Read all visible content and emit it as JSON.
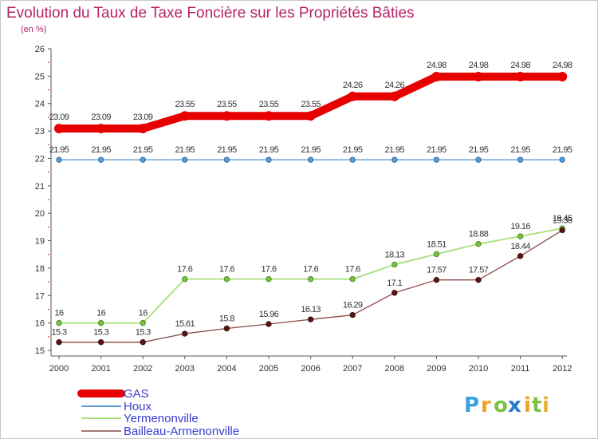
{
  "chart_data": {
    "type": "line",
    "title": "Evolution du Taux de Taxe Foncière sur les Propriétés Bâties",
    "subtitle": "(en %)",
    "xlabel": "",
    "ylabel": "",
    "ylim": [
      15,
      26
    ],
    "yticks": [
      "15",
      "16",
      "17",
      "18",
      "19",
      "20",
      "21",
      "22",
      "23",
      "24",
      "25",
      "26"
    ],
    "categories": [
      "2000",
      "2001",
      "2002",
      "2003",
      "2004",
      "2005",
      "2006",
      "2007",
      "2008",
      "2009",
      "2010",
      "2011",
      "2012"
    ],
    "grid": false,
    "legend_position": "bottom-left",
    "series": [
      {
        "name": "GAS",
        "color": "#e60000",
        "values": [
          23.09,
          23.09,
          23.09,
          23.55,
          23.55,
          23.55,
          23.55,
          24.26,
          24.26,
          24.98,
          24.98,
          24.98,
          24.98
        ],
        "labels": [
          "23.09",
          "23.09",
          "23.09",
          "23.55",
          "23.55",
          "23.55",
          "23.55",
          "24.26",
          "24.26",
          "24.98",
          "24.98",
          "24.98",
          "24.98"
        ]
      },
      {
        "name": "Houx",
        "color": "#5b9bd5",
        "values": [
          21.95,
          21.95,
          21.95,
          21.95,
          21.95,
          21.95,
          21.95,
          21.95,
          21.95,
          21.95,
          21.95,
          21.95,
          21.95
        ],
        "labels": [
          "21.95",
          "21.95",
          "21.95",
          "21.95",
          "21.95",
          "21.95",
          "21.95",
          "21.95",
          "21.95",
          "21.95",
          "21.95",
          "21.95",
          "21.95"
        ]
      },
      {
        "name": "Yermenonville",
        "color": "#a6e07a",
        "values": [
          16,
          16,
          16,
          17.6,
          17.6,
          17.6,
          17.6,
          17.6,
          18.13,
          18.51,
          18.88,
          19.16,
          19.45
        ],
        "labels": [
          "16",
          "16",
          "16",
          "17.6",
          "17.6",
          "17.6",
          "17.6",
          "17.6",
          "18.13",
          "18.51",
          "18.88",
          "19.16",
          "19.45"
        ]
      },
      {
        "name": "Bailleau-Armenonville",
        "color": "#8b4a4a",
        "values": [
          15.3,
          15.3,
          15.3,
          15.61,
          15.8,
          15.96,
          16.13,
          16.29,
          17.1,
          17.57,
          17.57,
          18.44,
          19.38
        ],
        "labels": [
          "15.3",
          "15.3",
          "15.3",
          "15.61",
          "15.8",
          "15.96",
          "16.13",
          "16.29",
          "17.1",
          "17.57",
          "17.57",
          "18.44",
          "19.38"
        ]
      }
    ]
  },
  "brand": {
    "logo_letters": [
      "P",
      "r",
      "o",
      "x",
      "i",
      "t",
      "i"
    ],
    "logo_colors": [
      "#3aa0e0",
      "#f0a020",
      "#7cc242",
      "#2a78c8",
      "#f0a020",
      "#7cc242",
      "#e8b030"
    ]
  }
}
